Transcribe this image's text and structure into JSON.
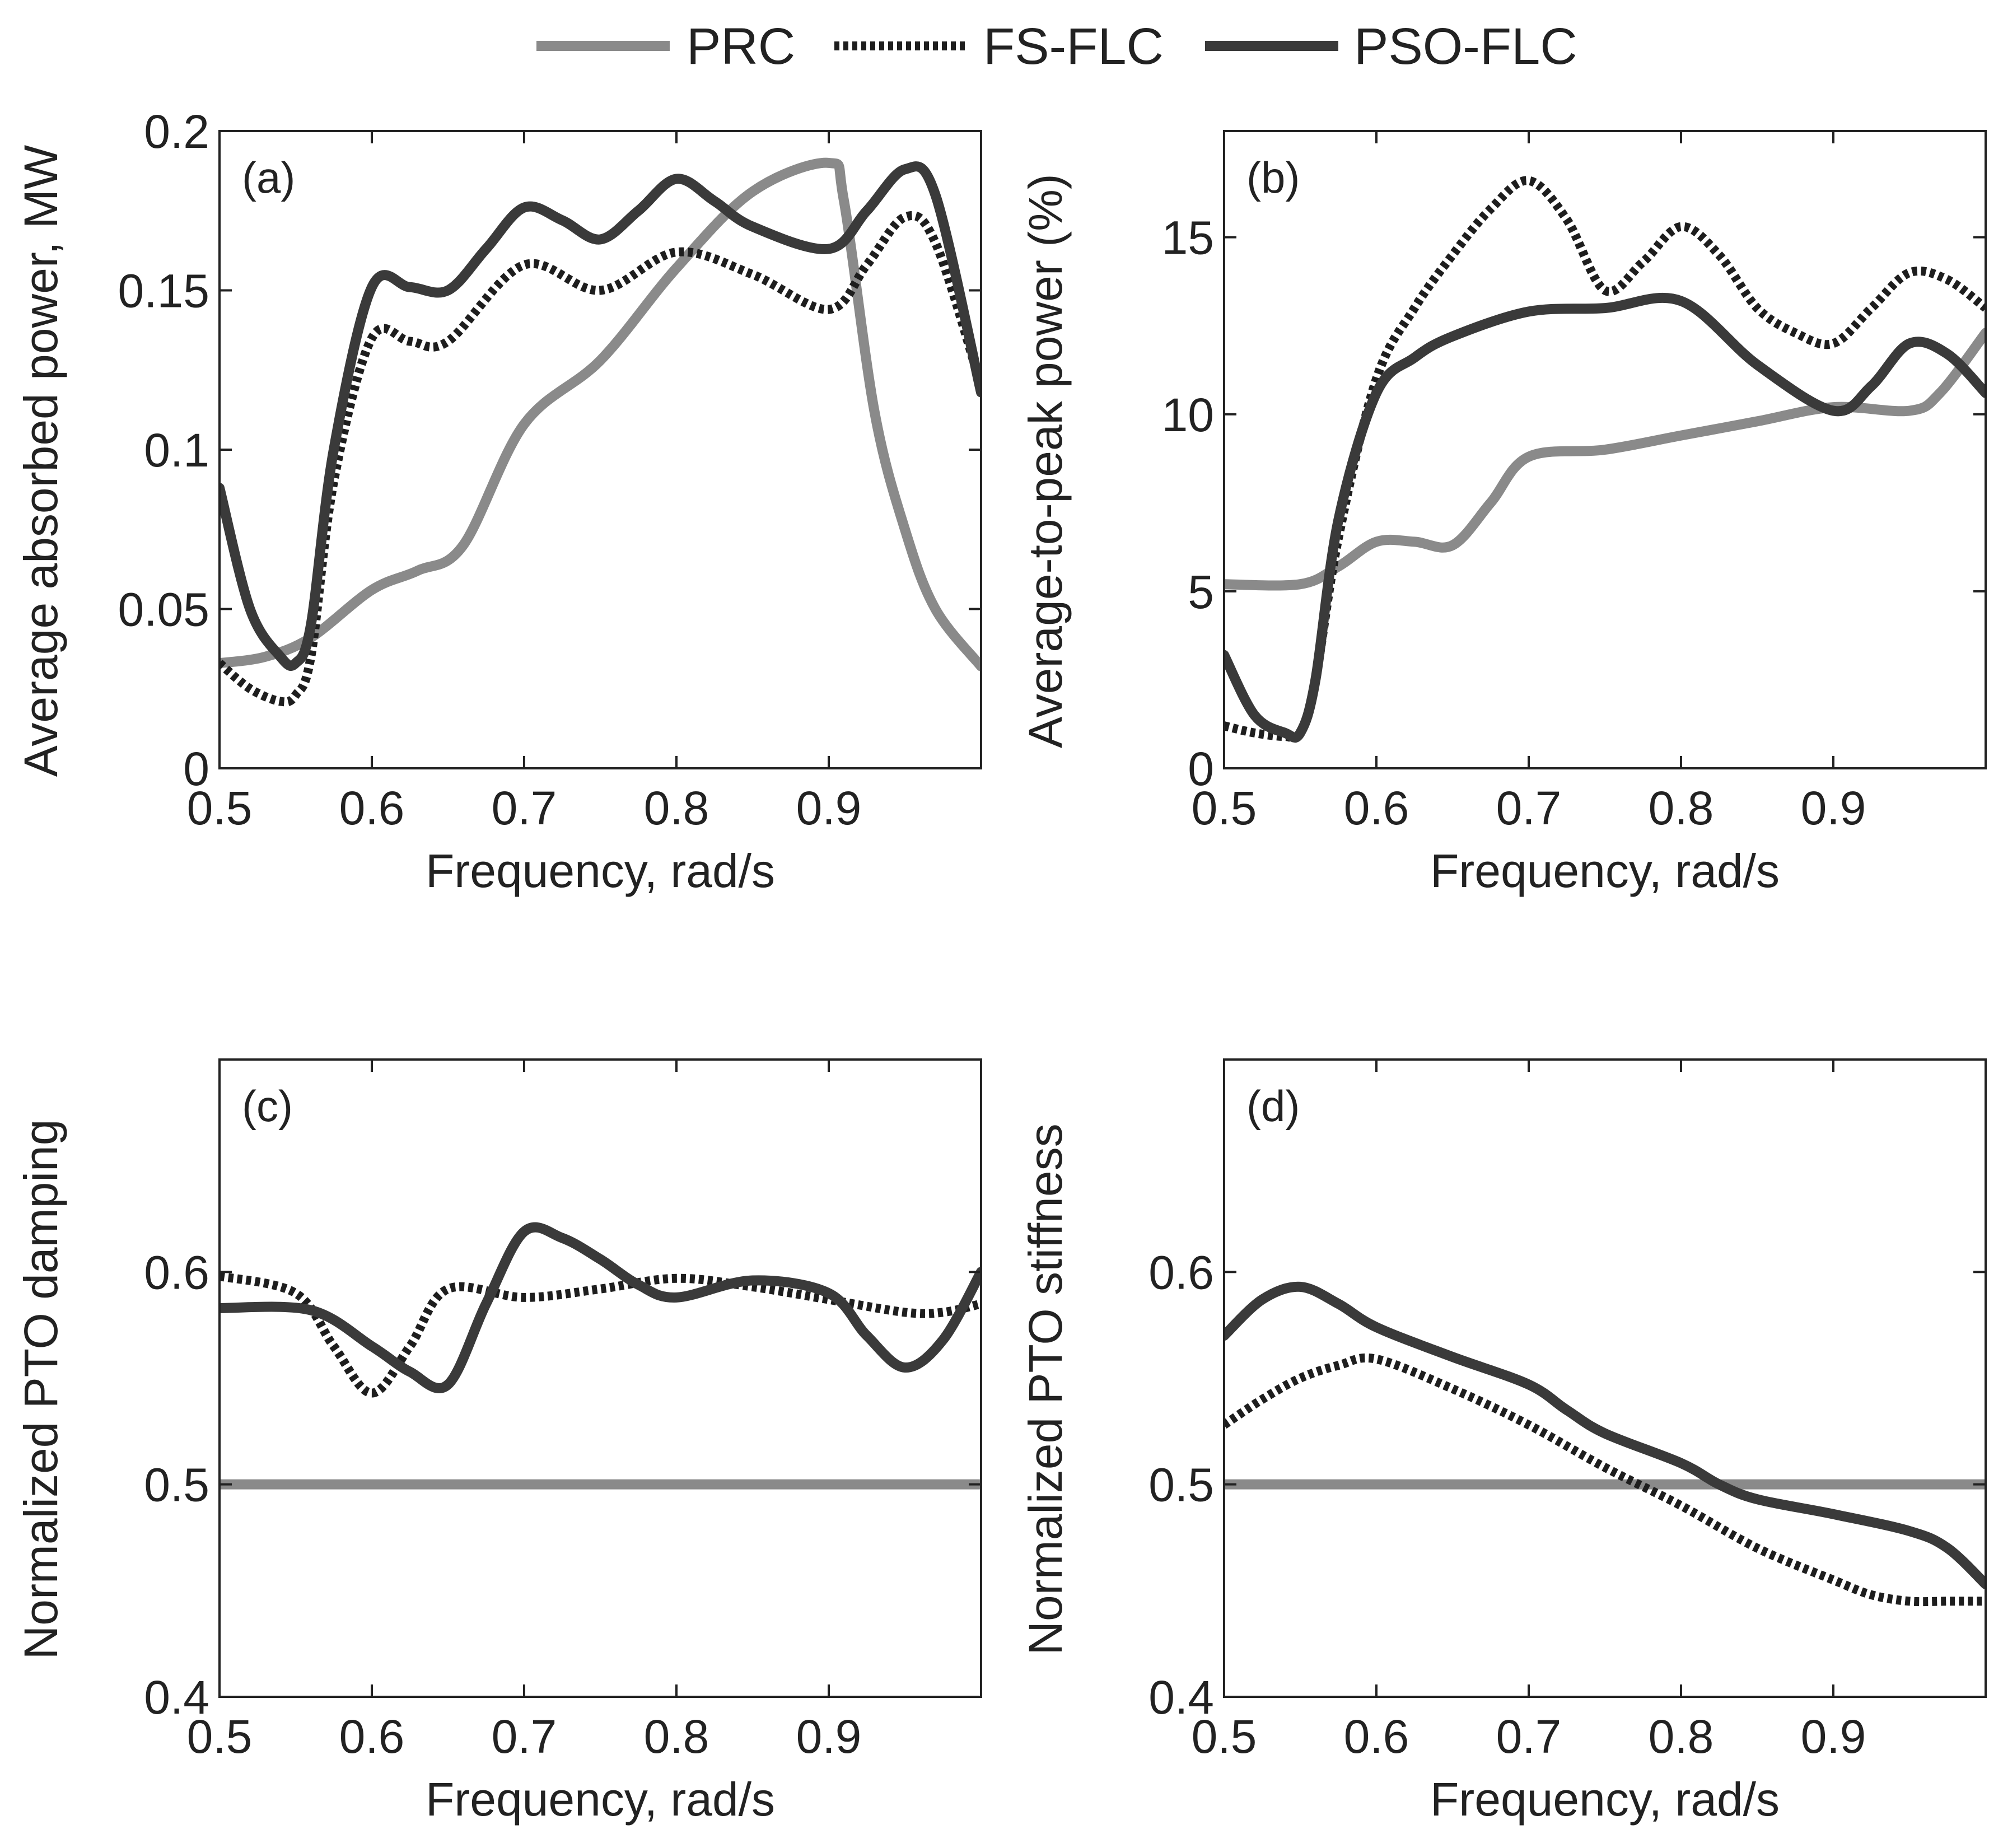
{
  "legend": [
    {
      "name": "PRC",
      "color": "#8a8a8a",
      "style": "solid"
    },
    {
      "name": "FS-FLC",
      "color": "#1e1e1e",
      "style": "dotted"
    },
    {
      "name": "PSO-FLC",
      "color": "#3a3a3a",
      "style": "solid"
    }
  ],
  "chart_data": [
    {
      "id": "a",
      "panel_label": "(a)",
      "type": "line",
      "xlabel": "Frequency, rad/s",
      "ylabel": "Average absorbed power, MW",
      "xlim": [
        0.5,
        1.0
      ],
      "ylim": [
        0,
        0.2
      ],
      "xticks": [
        0.5,
        0.6,
        0.7,
        0.8,
        0.9
      ],
      "xtick_labels": [
        "0.5",
        "0.6",
        "0.7",
        "0.8",
        "0.9"
      ],
      "yticks": [
        0,
        0.05,
        0.1,
        0.15,
        0.2
      ],
      "ytick_labels": [
        "0",
        "0.05",
        "0.1",
        "0.15",
        "0.2"
      ],
      "series": [
        {
          "name": "PRC",
          "x": [
            0.5,
            0.53,
            0.56,
            0.6,
            0.63,
            0.66,
            0.7,
            0.75,
            0.8,
            0.85,
            0.9,
            0.91,
            0.93,
            0.95,
            0.97,
            1.0
          ],
          "y": [
            0.033,
            0.035,
            0.041,
            0.056,
            0.062,
            0.07,
            0.108,
            0.128,
            0.157,
            0.181,
            0.19,
            0.178,
            0.112,
            0.075,
            0.05,
            0.032
          ]
        },
        {
          "name": "FS-FLC",
          "x": [
            0.5,
            0.52,
            0.54,
            0.55,
            0.56,
            0.575,
            0.6,
            0.625,
            0.65,
            0.7,
            0.75,
            0.8,
            0.85,
            0.9,
            0.925,
            0.95,
            0.97,
            1.0
          ],
          "y": [
            0.033,
            0.025,
            0.021,
            0.023,
            0.035,
            0.09,
            0.135,
            0.134,
            0.134,
            0.158,
            0.15,
            0.162,
            0.155,
            0.144,
            0.158,
            0.173,
            0.165,
            0.12
          ]
        },
        {
          "name": "PSO-FLC",
          "x": [
            0.5,
            0.52,
            0.54,
            0.55,
            0.56,
            0.575,
            0.6,
            0.625,
            0.65,
            0.675,
            0.7,
            0.725,
            0.75,
            0.775,
            0.8,
            0.825,
            0.85,
            0.9,
            0.925,
            0.95,
            0.97,
            1.0
          ],
          "y": [
            0.088,
            0.05,
            0.035,
            0.033,
            0.045,
            0.1,
            0.151,
            0.151,
            0.15,
            0.163,
            0.176,
            0.172,
            0.166,
            0.175,
            0.185,
            0.178,
            0.17,
            0.163,
            0.175,
            0.188,
            0.18,
            0.118
          ]
        }
      ]
    },
    {
      "id": "b",
      "panel_label": "(b)",
      "type": "line",
      "xlabel": "Frequency, rad/s",
      "ylabel": "Average-to-peak power (%)",
      "xlim": [
        0.5,
        1.0
      ],
      "ylim": [
        0,
        18
      ],
      "xticks": [
        0.5,
        0.6,
        0.7,
        0.8,
        0.9
      ],
      "xtick_labels": [
        "0.5",
        "0.6",
        "0.7",
        "0.8",
        "0.9"
      ],
      "yticks": [
        0,
        5,
        10,
        15
      ],
      "ytick_labels": [
        "0",
        "5",
        "10",
        "15"
      ],
      "series": [
        {
          "name": "PRC",
          "x": [
            0.5,
            0.55,
            0.575,
            0.6,
            0.625,
            0.65,
            0.675,
            0.7,
            0.75,
            0.8,
            0.85,
            0.9,
            0.95,
            0.97,
            1.0
          ],
          "y": [
            5.2,
            5.2,
            5.7,
            6.4,
            6.4,
            6.3,
            7.5,
            8.8,
            9.0,
            9.4,
            9.8,
            10.2,
            10.1,
            10.6,
            12.3
          ]
        },
        {
          "name": "FS-FLC",
          "x": [
            0.5,
            0.52,
            0.54,
            0.55,
            0.56,
            0.575,
            0.6,
            0.625,
            0.65,
            0.675,
            0.7,
            0.725,
            0.75,
            0.775,
            0.8,
            0.825,
            0.85,
            0.875,
            0.9,
            0.925,
            0.95,
            0.975,
            1.0
          ],
          "y": [
            1.2,
            1.0,
            0.9,
            1.0,
            2.5,
            6.5,
            11.0,
            13.0,
            14.5,
            15.8,
            16.6,
            15.5,
            13.5,
            14.3,
            15.3,
            14.5,
            13.0,
            12.3,
            12.0,
            13.0,
            14.0,
            13.8,
            13.0
          ]
        },
        {
          "name": "PSO-FLC",
          "x": [
            0.5,
            0.52,
            0.54,
            0.55,
            0.56,
            0.575,
            0.6,
            0.625,
            0.65,
            0.7,
            0.75,
            0.8,
            0.85,
            0.9,
            0.925,
            0.95,
            0.975,
            1.0
          ],
          "y": [
            3.2,
            1.5,
            1.0,
            1.0,
            2.5,
            7.0,
            10.6,
            11.6,
            12.2,
            12.9,
            13.0,
            13.2,
            11.4,
            10.1,
            10.8,
            12.0,
            11.7,
            10.6
          ]
        }
      ]
    },
    {
      "id": "c",
      "panel_label": "(c)",
      "type": "line",
      "xlabel": "Frequency, rad/s",
      "ylabel": "Normalized PTO damping",
      "xlim": [
        0.5,
        1.0
      ],
      "ylim": [
        0.4,
        0.7
      ],
      "xticks": [
        0.5,
        0.6,
        0.7,
        0.8,
        0.9
      ],
      "xtick_labels": [
        "0.5",
        "0.6",
        "0.7",
        "0.8",
        "0.9"
      ],
      "yticks": [
        0.4,
        0.5,
        0.6
      ],
      "ytick_labels": [
        "0.4",
        "0.5",
        "0.6"
      ],
      "series": [
        {
          "name": "PRC",
          "x": [
            0.5,
            1.0
          ],
          "y": [
            0.5,
            0.5
          ]
        },
        {
          "name": "FS-FLC",
          "x": [
            0.5,
            0.55,
            0.575,
            0.6,
            0.625,
            0.65,
            0.7,
            0.75,
            0.8,
            0.85,
            0.9,
            0.95,
            0.975,
            1.0
          ],
          "y": [
            0.598,
            0.59,
            0.565,
            0.543,
            0.565,
            0.592,
            0.588,
            0.592,
            0.597,
            0.593,
            0.587,
            0.581,
            0.581,
            0.585
          ]
        },
        {
          "name": "PSO-FLC",
          "x": [
            0.5,
            0.56,
            0.6,
            0.625,
            0.65,
            0.675,
            0.7,
            0.725,
            0.75,
            0.775,
            0.8,
            0.85,
            0.9,
            0.925,
            0.95,
            0.975,
            1.0
          ],
          "y": [
            0.583,
            0.582,
            0.565,
            0.553,
            0.547,
            0.585,
            0.619,
            0.616,
            0.606,
            0.594,
            0.588,
            0.596,
            0.59,
            0.57,
            0.555,
            0.568,
            0.6
          ]
        }
      ]
    },
    {
      "id": "d",
      "panel_label": "(d)",
      "type": "line",
      "xlabel": "Frequency, rad/s",
      "ylabel": "Normalized PTO stiffness",
      "xlim": [
        0.5,
        1.0
      ],
      "ylim": [
        0.4,
        0.7
      ],
      "xticks": [
        0.5,
        0.6,
        0.7,
        0.8,
        0.9
      ],
      "xtick_labels": [
        "0.5",
        "0.6",
        "0.7",
        "0.8",
        "0.9"
      ],
      "yticks": [
        0.4,
        0.5,
        0.6
      ],
      "ytick_labels": [
        "0.4",
        "0.5",
        "0.6"
      ],
      "series": [
        {
          "name": "PRC",
          "x": [
            0.5,
            1.0
          ],
          "y": [
            0.5,
            0.5
          ]
        },
        {
          "name": "FS-FLC",
          "x": [
            0.5,
            0.525,
            0.55,
            0.575,
            0.6,
            0.65,
            0.7,
            0.75,
            0.8,
            0.85,
            0.9,
            0.925,
            0.95,
            0.975,
            1.0
          ],
          "y": [
            0.528,
            0.54,
            0.55,
            0.556,
            0.559,
            0.545,
            0.528,
            0.508,
            0.49,
            0.47,
            0.455,
            0.448,
            0.445,
            0.445,
            0.445
          ]
        },
        {
          "name": "PSO-FLC",
          "x": [
            0.5,
            0.525,
            0.55,
            0.575,
            0.6,
            0.65,
            0.7,
            0.725,
            0.75,
            0.8,
            0.825,
            0.85,
            0.9,
            0.95,
            0.975,
            1.0
          ],
          "y": [
            0.57,
            0.587,
            0.593,
            0.585,
            0.574,
            0.56,
            0.547,
            0.535,
            0.524,
            0.51,
            0.5,
            0.493,
            0.486,
            0.478,
            0.47,
            0.453
          ]
        }
      ]
    }
  ]
}
